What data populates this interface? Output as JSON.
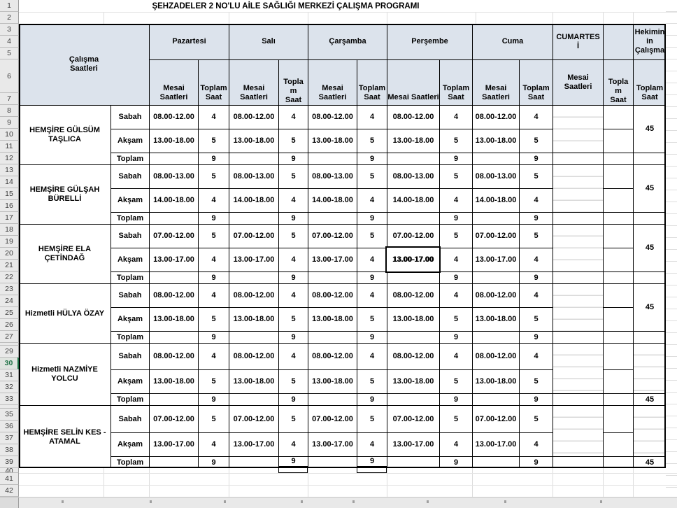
{
  "title": "ŞEHZADELER 2 NO'LU AİLE SAĞLIĞI MERKEZİ ÇALIŞMA PROGRAMI",
  "colors": {
    "header_fill": "#dce3ec",
    "grid_line": "#d9d9d9",
    "table_border": "#000000",
    "gutter_bg": "#e9e9e9",
    "selected_row_green": "#1e7145"
  },
  "gutter": {
    "visible_numbers": [
      "1",
      "2",
      "3",
      "4",
      "5",
      "6",
      "7",
      "8",
      "9",
      "10",
      "11",
      "12",
      "13",
      "14",
      "15",
      "16",
      "17",
      "18",
      "19",
      "20",
      "21",
      "22",
      "23",
      "24",
      "25",
      "26",
      "27",
      "29",
      "30",
      "31",
      "32",
      "33",
      "35",
      "36",
      "37",
      "38",
      "39",
      "40",
      "41",
      "42"
    ],
    "selected_row": "30"
  },
  "header": {
    "corner": "Çalışma\nSaatleri",
    "days": [
      {
        "label": "Pazartesi",
        "mesai": "Mesai Saatleri",
        "toplam": "Toplam Saat"
      },
      {
        "label": "Salı",
        "mesai": "Mesai Saatleri",
        "toplam": "Toplam Saat"
      },
      {
        "label": "Çarşamba",
        "mesai": "Mesai Saatleri",
        "toplam": "Toplam Saat"
      },
      {
        "label": "Perşembe",
        "mesai": "Mesai Saatleri",
        "toplam": "Toplam Saat"
      },
      {
        "label": "Cuma",
        "mesai": "Mesai Saatleri",
        "toplam": "Toplam Saat"
      },
      {
        "label": "CUMARTESİ",
        "mesai": "Mesai Saatleri",
        "toplam": "Toplam Saat"
      }
    ],
    "empty_day_cell": "",
    "physician": {
      "label": "Hekiminin Çalışma",
      "sub": "Toplam Saat"
    }
  },
  "staff": [
    {
      "name": "HEMŞİRE GÜLSÜM TAŞLICA",
      "rows": {
        "sabah": {
          "label": "Sabah",
          "weekday_mesai": "08.00-12.00",
          "weekday_saat": "4",
          "cumartesi_mesai": "",
          "cumartesi_saat": ""
        },
        "aksam": {
          "label": "Akşam",
          "weekday_mesai": "13.00-18.00",
          "weekday_saat": "5",
          "cumartesi_mesai": "",
          "cumartesi_saat": ""
        },
        "toplam": {
          "label": "Toplam",
          "weekday_saat": "9",
          "cumartesi_saat": ""
        }
      },
      "weekly_total": "45",
      "weekly_total_position": "sabah_aksam"
    },
    {
      "name": "HEMŞİRE GÜLŞAH BÜRELLİ",
      "rows": {
        "sabah": {
          "label": "Sabah",
          "weekday_mesai": "08.00-13.00",
          "weekday_saat": "5",
          "cumartesi_mesai": "",
          "cumartesi_saat": ""
        },
        "aksam": {
          "label": "Akşam",
          "weekday_mesai": "14.00-18.00",
          "weekday_saat": "4",
          "cumartesi_mesai": "",
          "cumartesi_saat": ""
        },
        "toplam": {
          "label": "Toplam",
          "weekday_saat": "9",
          "cumartesi_saat": ""
        }
      },
      "weekly_total": "45",
      "weekly_total_position": "sabah_aksam"
    },
    {
      "name": "HEMŞİRE ELA ÇETİNDAĞ",
      "rows": {
        "sabah": {
          "label": "Sabah",
          "weekday_mesai": "07.00-12.00",
          "weekday_saat": "5",
          "cumartesi_mesai": "",
          "cumartesi_saat": ""
        },
        "aksam": {
          "label": "Akşam",
          "weekday_mesai": "13.00-17.00",
          "weekday_saat": "4",
          "cumartesi_mesai": "",
          "cumartesi_saat": ""
        },
        "toplam": {
          "label": "Toplam",
          "weekday_saat": "9",
          "cumartesi_saat": ""
        }
      },
      "weekly_total": "45",
      "weekly_total_position": "sabah_aksam"
    },
    {
      "name": "Hizmetli  HÜLYA ÖZAY",
      "rows": {
        "sabah": {
          "label": "Sabah",
          "weekday_mesai": "08.00-12.00",
          "weekday_saat": "4",
          "cumartesi_mesai": "",
          "cumartesi_saat": ""
        },
        "aksam": {
          "label": "Akşam",
          "weekday_mesai": "13.00-18.00",
          "weekday_saat": "5",
          "cumartesi_mesai": "",
          "cumartesi_saat": ""
        },
        "toplam": {
          "label": "Toplam",
          "weekday_saat": "9",
          "cumartesi_saat": ""
        }
      },
      "weekly_total": "45",
      "weekly_total_position": "sabah_aksam"
    },
    {
      "name": "Hizmetli NAZMİYE YOLCU",
      "rows": {
        "sabah": {
          "label": "Sabah",
          "weekday_mesai": "08.00-12.00",
          "weekday_saat": "4",
          "cumartesi_mesai": "",
          "cumartesi_saat": ""
        },
        "aksam": {
          "label": "Akşam",
          "weekday_mesai": "13.00-18.00",
          "weekday_saat": "5",
          "cumartesi_mesai": "",
          "cumartesi_saat": ""
        },
        "toplam": {
          "label": "Toplam",
          "weekday_saat": "9",
          "cumartesi_saat": ""
        }
      },
      "weekly_total": "45",
      "weekly_total_position": "toplam_row"
    },
    {
      "name": "HEMŞİRE SELİN KES - ATAMAL",
      "rows": {
        "sabah": {
          "label": "Sabah",
          "weekday_mesai": "07.00-12.00",
          "weekday_saat": "5",
          "cumartesi_mesai": "",
          "cumartesi_saat": ""
        },
        "aksam": {
          "label": "Akşam",
          "weekday_mesai": "13.00-17.00",
          "weekday_saat": "4",
          "cumartesi_mesai": "",
          "cumartesi_saat": ""
        },
        "toplam": {
          "label": "Toplam",
          "weekday_saat": "9",
          "cumartesi_saat": ""
        }
      },
      "weekly_total": "45",
      "weekly_total_position": "toplam_row"
    }
  ],
  "active_cell": {
    "staff_index": 2,
    "shift": "aksam",
    "day_index": 3,
    "value": "13.00-17.00"
  },
  "raised_totals": {
    "staff_index": 5,
    "day_indices": [
      1,
      2
    ]
  }
}
